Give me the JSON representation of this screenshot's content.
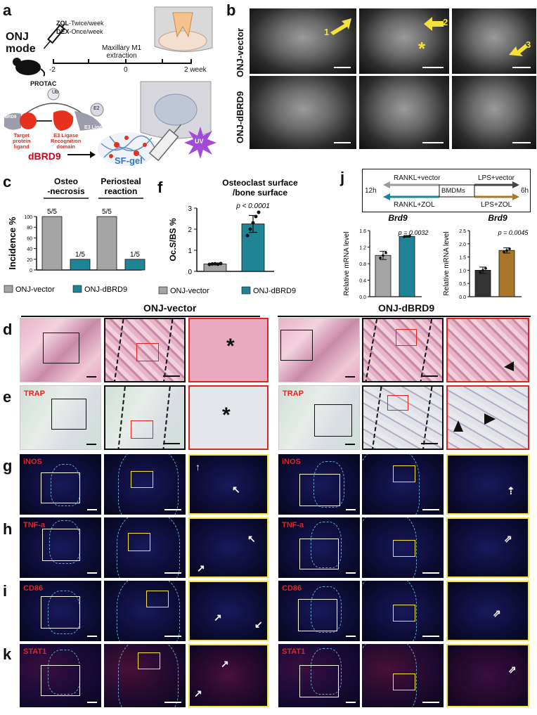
{
  "panels": {
    "a": "a",
    "b": "b",
    "c": "c",
    "f": "f",
    "j": "j",
    "d": "d",
    "e": "e",
    "g": "g",
    "h": "h",
    "i": "i",
    "k": "k"
  },
  "panel_a": {
    "onj_line1": "ONJ",
    "onj_line2": "mode",
    "zol_bold": "ZOL",
    "zol_rest": "-Twice/week",
    "dex_bold": "DEX",
    "dex_rest": "-Once/week",
    "extraction_line1": "Maxillary M1",
    "extraction_line2": "extraction",
    "tick_m2": "-2",
    "tick_0": "0",
    "tick_2": "2 week",
    "protac": "PROTAC",
    "ub": "Ub",
    "e2": "E2",
    "brd9": "BRD9",
    "e3ligase": "E3 Ligase",
    "target_ligand": [
      "Target",
      "protein",
      "ligand"
    ],
    "e3_recog": [
      "E3 Ligase",
      "Recognition",
      "domain"
    ],
    "dbrd9": "dBRD9",
    "sfgel": "SF-gel",
    "uv": "UV"
  },
  "panel_b": {
    "row1": "ONJ-vector",
    "row2": "ONJ-dBRD9",
    "arrow1": "1",
    "arrow2": "2",
    "arrow3": "3",
    "asterisk": "*"
  },
  "section_titles": {
    "vector": "ONJ-vector",
    "dbrd9": "ONJ-dBRD9"
  },
  "stain_labels": {
    "trap": "TRAP",
    "inos": "iNOS",
    "tnfa": "TNF-a",
    "cd86": "CD86",
    "stat1": "STAT1"
  },
  "asterisk": "*",
  "colors": {
    "vector_gray": "#a5a5a5",
    "dbrd9_teal": "#1f8496",
    "j_gray": "#333333",
    "j_brown": "#a8772a",
    "red_box": "#e3231f",
    "yellow_box": "#f4e23a"
  },
  "chart_data": [
    {
      "id": "c",
      "type": "bar",
      "ylabel": "Incidence %",
      "ylim": [
        0,
        100
      ],
      "yticks": [
        0,
        20,
        40,
        60,
        80,
        100
      ],
      "groups": [
        {
          "title": [
            "Osteo",
            "-necrosis"
          ],
          "labels": [
            "5/5",
            "1/5"
          ],
          "values": [
            100,
            20
          ]
        },
        {
          "title": [
            "Periosteal",
            "reaction"
          ],
          "labels": [
            "5/5",
            "1/5"
          ],
          "values": [
            100,
            20
          ]
        }
      ],
      "legend": [
        "ONJ-vector",
        "ONJ-dBRD9"
      ]
    },
    {
      "id": "f",
      "type": "bar",
      "title": [
        "Osteoclast surface",
        "/bone surface"
      ],
      "ylabel": "Oc.S/BS %",
      "ylim": [
        0,
        3
      ],
      "yticks": [
        0,
        1,
        2,
        3
      ],
      "categories": [
        "ONJ-vector",
        "ONJ-dBRD9"
      ],
      "values": [
        0.35,
        2.25
      ],
      "errors": [
        0.03,
        0.4
      ],
      "points": [
        [
          0.33,
          0.35,
          0.36,
          0.34,
          0.37
        ],
        [
          1.7,
          2.0,
          2.3,
          2.6,
          2.8
        ]
      ],
      "pvalue": "p < 0.0001",
      "legend": [
        "ONJ-vector",
        "ONJ-dBRD9"
      ]
    },
    {
      "id": "j1",
      "type": "bar",
      "title": "Brd9",
      "ylabel": "Relative mRNA level",
      "ylim": [
        0,
        1.6
      ],
      "yticks": [
        "0.0",
        "0.4",
        "0.8",
        "1.2",
        "1.6"
      ],
      "values": [
        1.0,
        1.46
      ],
      "errors": [
        0.1,
        0.02
      ],
      "pvalue": "p = 0.0032"
    },
    {
      "id": "j2",
      "type": "bar",
      "title": "Brd9",
      "ylabel": "Relative mRNA level",
      "ylim": [
        0,
        2.5
      ],
      "yticks": [
        "0.0",
        "0.5",
        "1.0",
        "1.5",
        "2.0",
        "2.5"
      ],
      "values": [
        1.0,
        1.75
      ],
      "errors": [
        0.12,
        0.1
      ],
      "pvalue": "p = 0.0045"
    }
  ],
  "panel_j": {
    "rankl_vector": "RANKL+vector",
    "lps_vector": "LPS+vector",
    "rankl_zol": "RANKL+ZOL",
    "lps_zol": "LPS+ZOL",
    "bmdms": "BMDMs",
    "t12": "12h",
    "t6": "6h"
  }
}
